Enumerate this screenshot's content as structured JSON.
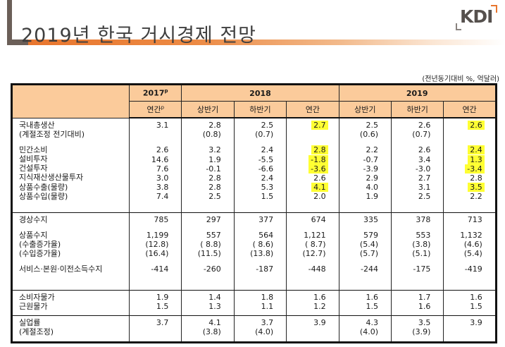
{
  "header": {
    "title": "2019년 한국 거시경제 전망",
    "logo": "KDI",
    "unit_note": "(전년동기대비 %, 억달러)",
    "accent_color": "#e8762e",
    "header_fill": "#fbcb9b",
    "highlight_color": "#ffff33"
  },
  "table": {
    "years": [
      {
        "label": "2017",
        "sup": "p",
        "span": 1
      },
      {
        "label": "2018",
        "span": 3
      },
      {
        "label": "2019",
        "span": 3
      }
    ],
    "subheaders": [
      {
        "label": "연간",
        "sup": "p"
      },
      {
        "label": "상반기"
      },
      {
        "label": "하반기"
      },
      {
        "label": "연간"
      },
      {
        "label": "상반기"
      },
      {
        "label": "하반기"
      },
      {
        "label": "연간"
      }
    ],
    "groups": [
      {
        "rows": [
          {
            "label": "국내총생산",
            "values": [
              "3.1",
              "2.8",
              "2.5",
              "2.7",
              "2.5",
              "2.6",
              "2.6"
            ],
            "highlight": [
              3,
              6
            ]
          },
          {
            "label": "(계절조정 전기대비)",
            "values": [
              "",
              "(0.8)",
              "(0.7)",
              "",
              "(0.6)",
              "(0.7)",
              ""
            ],
            "highlight": []
          },
          {
            "gap": true
          },
          {
            "label": "민간소비",
            "values": [
              "2.6",
              "3.2",
              "2.4",
              "2.8",
              "2.2",
              "2.6",
              "2.4"
            ],
            "highlight": [
              3,
              6
            ]
          },
          {
            "label": "설비투자",
            "values": [
              "14.6",
              "1.9",
              "-5.5",
              "-1.8",
              "-0.7",
              "3.4",
              "1.3"
            ],
            "highlight": [
              3,
              6
            ]
          },
          {
            "label": "건설투자",
            "values": [
              "7.6",
              "-0.1",
              "-6.6",
              "-3.6",
              "-3.9",
              "-3.0",
              "-3.4"
            ],
            "highlight": [
              3,
              6
            ]
          },
          {
            "label": "지식재산생산물투자",
            "values": [
              "3.0",
              "2.8",
              "2.4",
              "2.6",
              "2.9",
              "2.7",
              "2.8"
            ],
            "highlight": []
          },
          {
            "label": "상품수출(물량)",
            "values": [
              "3.8",
              "2.8",
              "5.3",
              "4.1",
              "4.0",
              "3.1",
              "3.5"
            ],
            "highlight": [
              3,
              6
            ]
          },
          {
            "label": "상품수입(물량)",
            "values": [
              "7.4",
              "2.5",
              "1.5",
              "2.0",
              "1.9",
              "2.5",
              "2.2"
            ],
            "highlight": []
          }
        ]
      },
      {
        "rows": [
          {
            "label": "경상수지",
            "values": [
              "785",
              "297",
              "377",
              "674",
              "335",
              "378",
              "713"
            ],
            "highlight": []
          },
          {
            "gap": true
          },
          {
            "label": "상품수지",
            "values": [
              "1,199",
              "557",
              "564",
              "1,121",
              "579",
              "553",
              "1,132"
            ],
            "highlight": []
          },
          {
            "label": "(수출증가율)",
            "values": [
              "(12.8)",
              "( 8.8)",
              "( 8.6)",
              "( 8.7)",
              "(5.4)",
              "(3.8)",
              "(4.6)"
            ],
            "highlight": []
          },
          {
            "label": "(수입증가율)",
            "values": [
              "(16.4)",
              "(11.5)",
              "(13.8)",
              "(12.7)",
              "(5.7)",
              "(5.1)",
              "(5.4)"
            ],
            "highlight": []
          },
          {
            "gap": true
          },
          {
            "label": "서비스·본원·이전소득수지",
            "values": [
              "-414",
              "-260",
              "-187",
              "-448",
              "-244",
              "-175",
              "-419"
            ],
            "highlight": []
          }
        ]
      },
      {
        "rows": [
          {
            "label": "소비자물가",
            "values": [
              "1.9",
              "1.4",
              "1.8",
              "1.6",
              "1.6",
              "1.7",
              "1.6"
            ],
            "highlight": []
          },
          {
            "label": "근원물가",
            "values": [
              "1.5",
              "1.3",
              "1.1",
              "1.2",
              "1.5",
              "1.6",
              "1.5"
            ],
            "highlight": []
          }
        ]
      },
      {
        "rows": [
          {
            "label": "실업률",
            "values": [
              "3.7",
              "4.1",
              "3.7",
              "3.9",
              "4.3",
              "3.5",
              "3.9"
            ],
            "highlight": []
          },
          {
            "label": "(계절조정)",
            "values": [
              "",
              "(3.8)",
              "(4.0)",
              "",
              "(4.0)",
              "(3.9)",
              ""
            ],
            "highlight": []
          }
        ]
      }
    ]
  }
}
